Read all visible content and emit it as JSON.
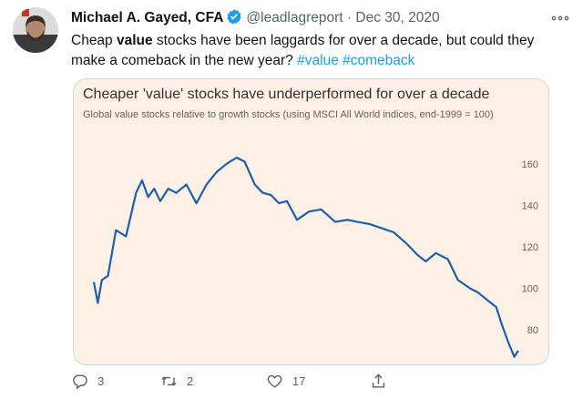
{
  "tweet": {
    "author_name": "Michael A. Gayed, CFA",
    "handle": "@leadlagreport",
    "separator": "·",
    "date": "Dec 30, 2020",
    "text_before": "Cheap ",
    "text_bold": "value",
    "text_after": " stocks have been laggards for over a decade, but could they make a comeback in the new year? ",
    "hashtags": [
      "#value",
      "#comeback"
    ]
  },
  "actions": {
    "reply_count": "3",
    "retweet_count": "2",
    "like_count": "17"
  },
  "icons": {
    "more": "more-horizontal-icon",
    "verified": "verified-badge-icon",
    "reply": "reply-icon",
    "retweet": "retweet-icon",
    "like": "heart-icon",
    "share": "share-icon"
  },
  "colors": {
    "accent": "#1d9bf0",
    "chart_background": "#fdf1e6",
    "chart_line": "#1f5fa8",
    "muted_text": "#536471"
  },
  "chart_data": {
    "type": "line",
    "title": "Cheaper 'value' stocks have underperformed for over a decade",
    "subtitle": "Global value stocks relative to growth stocks (using MSCI All World indices, end-1999 = 100)",
    "xlabel": "",
    "ylabel": "",
    "y_ticks": [
      160,
      140,
      120,
      100,
      80
    ],
    "ylim": [
      66,
      170
    ],
    "grid": false,
    "x": [
      1999.9,
      2000.1,
      2000.3,
      2000.6,
      2001.0,
      2001.5,
      2002.0,
      2002.3,
      2002.6,
      2002.9,
      2003.2,
      2003.6,
      2004.0,
      2004.5,
      2005.0,
      2005.5,
      2006.0,
      2006.5,
      2007.0,
      2007.4,
      2007.9,
      2008.3,
      2008.7,
      2009.1,
      2009.5,
      2010.0,
      2010.6,
      2011.2,
      2011.9,
      2012.5,
      2013.0,
      2013.6,
      2014.2,
      2014.8,
      2015.4,
      2016.0,
      2016.4,
      2016.9,
      2017.5,
      2018.0,
      2018.6,
      2019.0,
      2019.5,
      2019.9,
      2020.2,
      2020.5,
      2020.8,
      2021.0
    ],
    "values": [
      103,
      93,
      104,
      106,
      128,
      125,
      146,
      152,
      144,
      148,
      142,
      148,
      146,
      150,
      141,
      150,
      156,
      160,
      163,
      161,
      150,
      146,
      145,
      141,
      142,
      133,
      137,
      138,
      132,
      133,
      132,
      131,
      129,
      127,
      122,
      116,
      113,
      117,
      114,
      104,
      100,
      98,
      94,
      91,
      82,
      74,
      67,
      70
    ]
  }
}
